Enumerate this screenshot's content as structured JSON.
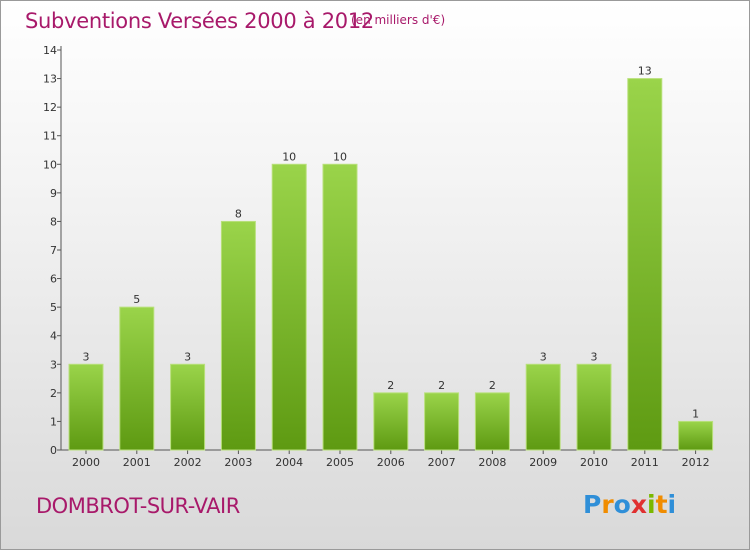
{
  "title": "Subventions Versées 2000 à 2012",
  "unit_note": "(en milliers d'€)",
  "commune": "DOMBROT-SUR-VAIR",
  "logo": {
    "letters": [
      "P",
      "r",
      "o",
      "x",
      "i",
      "t",
      "i"
    ],
    "colors": [
      "#2f8fd8",
      "#f08c00",
      "#2f8fd8",
      "#e03030",
      "#7ab800",
      "#f08c00",
      "#2f8fd8"
    ]
  },
  "chart_data": {
    "type": "bar",
    "categories": [
      "2000",
      "2001",
      "2002",
      "2003",
      "2004",
      "2005",
      "2006",
      "2007",
      "2008",
      "2009",
      "2010",
      "2011",
      "2012"
    ],
    "values": [
      3,
      5,
      3,
      8,
      10,
      10,
      2,
      2,
      2,
      3,
      3,
      13,
      1
    ],
    "data_labels": [
      "3",
      "5",
      "3",
      "8",
      "10",
      "10",
      "2",
      "2",
      "2",
      "3",
      "3",
      "13",
      "1"
    ],
    "y_ticks": [
      "0",
      "1",
      "2",
      "3",
      "4",
      "5",
      "6",
      "7",
      "8",
      "9",
      "10",
      "11",
      "12",
      "13",
      "14"
    ],
    "ylim": [
      0,
      14
    ],
    "bar_color": "#7cc22e",
    "grid": false
  }
}
